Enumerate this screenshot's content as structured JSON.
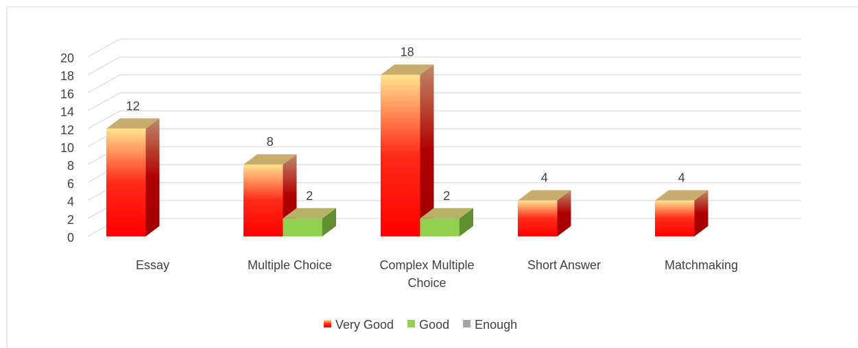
{
  "chart_data": {
    "type": "bar3d",
    "categories": [
      "Essay",
      "Multiple Choice",
      "Complex Multiple Choice",
      "Short Answer",
      "Matchmaking"
    ],
    "series": [
      {
        "name": "Very Good",
        "color": "#ff0000",
        "values": [
          12,
          8,
          18,
          4,
          4
        ]
      },
      {
        "name": "Good",
        "color": "#92d050",
        "values": [
          null,
          2,
          2,
          null,
          null
        ]
      },
      {
        "name": "Enough",
        "color": "#a5a5a5",
        "values": [
          null,
          null,
          null,
          null,
          null
        ]
      }
    ],
    "ylim": [
      0,
      20
    ],
    "yticks": [
      0,
      2,
      4,
      6,
      8,
      10,
      12,
      14,
      16,
      18,
      20
    ],
    "grid": true,
    "legend": "bottom"
  }
}
